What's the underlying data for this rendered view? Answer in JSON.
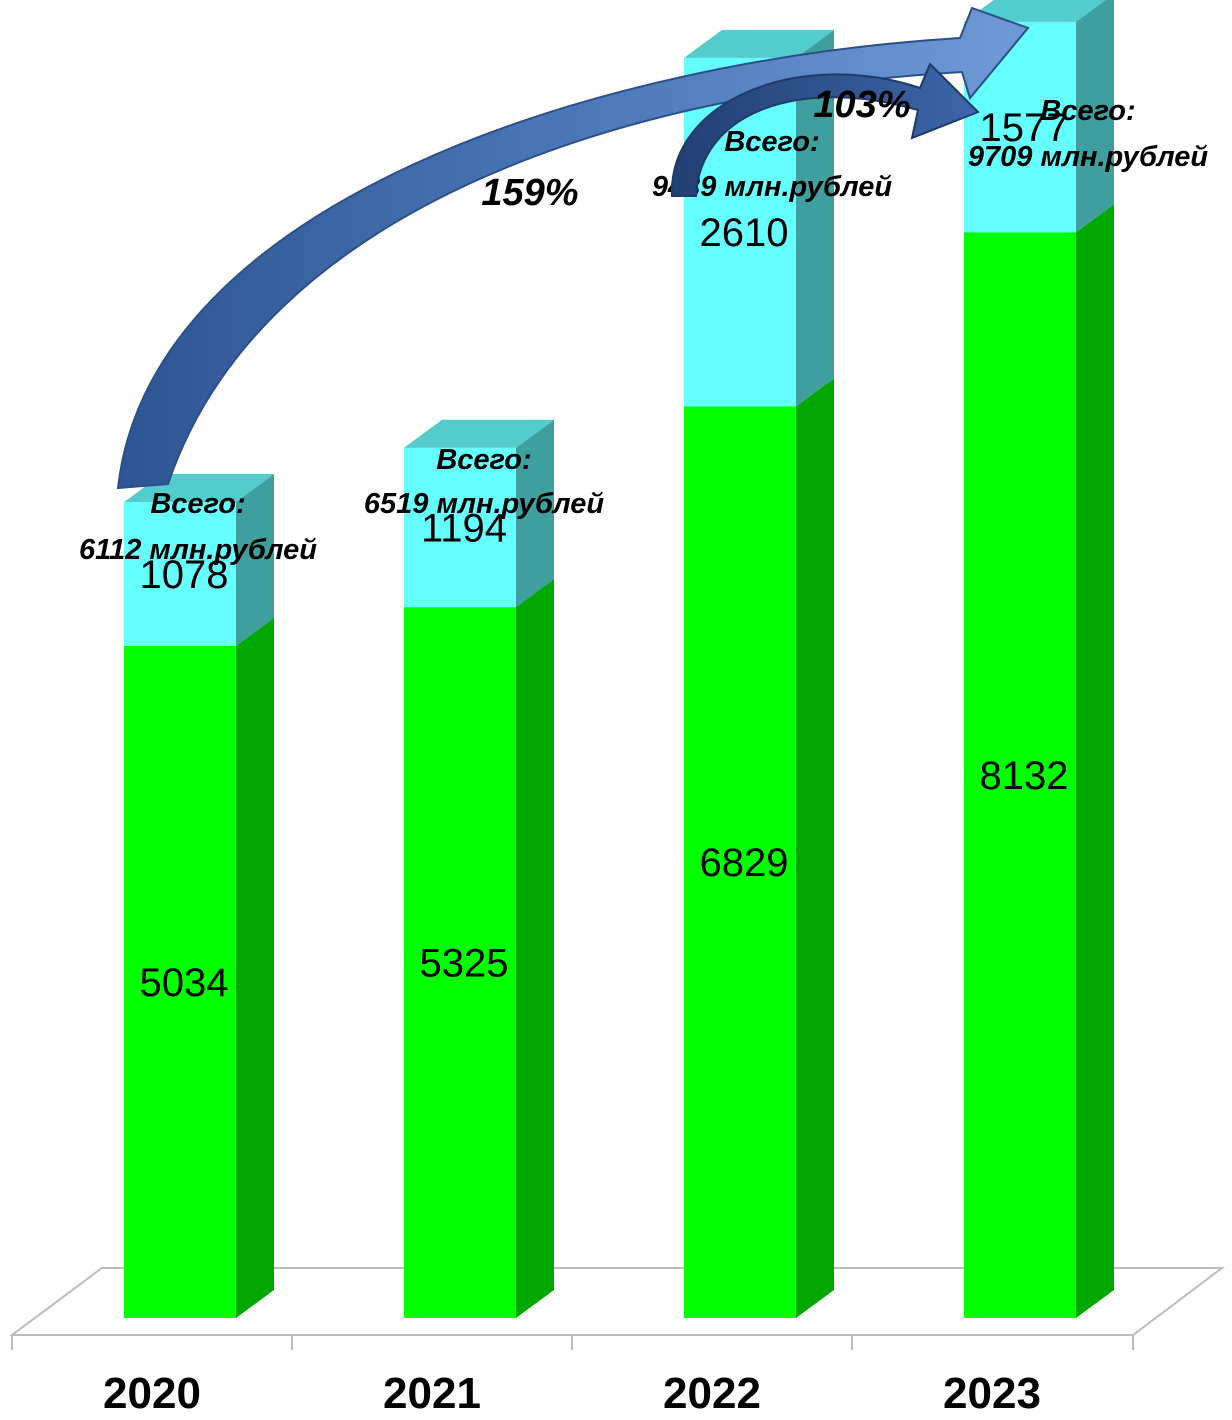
{
  "chart_data": {
    "type": "bar",
    "stacked": true,
    "categories": [
      "2020",
      "2021",
      "2022",
      "2023"
    ],
    "series": [
      {
        "values": [
          5034,
          5325,
          6829,
          8132
        ],
        "color": "#00ff00"
      },
      {
        "values": [
          1078,
          1194,
          2610,
          1577
        ],
        "color": "#66ffff"
      }
    ],
    "total_prefix": "Всего:",
    "totals": [
      "6112 млн.рублей",
      "6519 млн.рублей",
      "9439 млн.рублей",
      "9709 млн.рублей"
    ],
    "annotations": [
      {
        "text": "159%",
        "from": "2020",
        "to": "2023"
      },
      {
        "text": "103%",
        "from": "2022",
        "to": "2023"
      }
    ],
    "ylim": [
      0,
      10000
    ],
    "grid": false,
    "legend": "none",
    "colors": {
      "arrow": "#4a74b5",
      "arrow_dark": "#2c4f8a"
    }
  }
}
